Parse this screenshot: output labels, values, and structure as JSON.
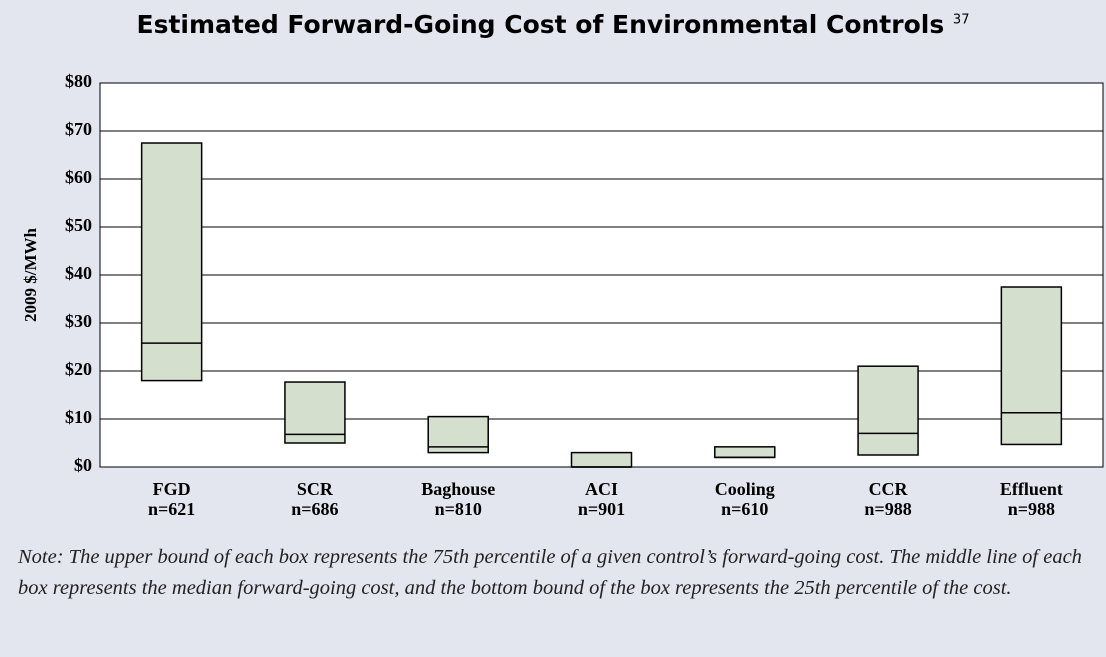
{
  "chart_data": {
    "type": "box",
    "title": "Estimated Forward-Going Cost of Environmental Controls",
    "title_superscript": "37",
    "y_label": "2009 $/MWh",
    "categories": [
      "FGD",
      "SCR",
      "Baghouse",
      "ACI",
      "Cooling",
      "CCR",
      "Effluent"
    ],
    "sample_sizes": [
      "n=621",
      "n=686",
      "n=810",
      "n=901",
      "n=610",
      "n=988",
      "n=988"
    ],
    "q1": [
      18,
      5,
      3,
      0,
      2,
      2.5,
      4.7
    ],
    "median": [
      25.8,
      6.8,
      4.2,
      0,
      2,
      7,
      11.3
    ],
    "q3": [
      67.5,
      17.7,
      10.5,
      3,
      4.2,
      21,
      37.5
    ],
    "color": "#d5dfcd",
    "ylim": [
      0,
      80
    ],
    "yticks": [
      {
        "value": 0,
        "label": "$0"
      },
      {
        "value": 10,
        "label": "$10"
      },
      {
        "value": 20,
        "label": "$20"
      },
      {
        "value": 30,
        "label": "$30"
      },
      {
        "value": 40,
        "label": "$40"
      },
      {
        "value": 50,
        "label": "$50"
      },
      {
        "value": 60,
        "label": "$60"
      },
      {
        "value": 70,
        "label": "$70"
      },
      {
        "value": 80,
        "label": "$80"
      }
    ],
    "grid": true,
    "note": "Note: The upper bound of each box represents the 75th percentile of a given control’s forward-going cost. The middle line of each box represents the median forward-going cost, and the bottom bound of the box represents the 25th percentile of the cost."
  }
}
